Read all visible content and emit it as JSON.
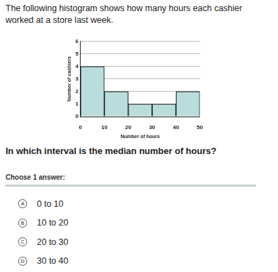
{
  "question": "The following histogram shows how many hours each cashier worked at a store last week.",
  "chart_data": {
    "type": "histogram",
    "x_label": "Number of hours",
    "y_label": "Number of cashiers",
    "bins": [
      0,
      10,
      20,
      30,
      40,
      50
    ],
    "values": [
      4,
      2,
      1,
      1,
      2
    ],
    "color": "#b9dcdc",
    "xlim": [
      0,
      50
    ],
    "xticks": [
      0,
      10,
      20,
      30,
      40,
      50
    ],
    "ylim": [
      0,
      6
    ],
    "yticks": [
      0,
      1,
      2,
      3,
      4,
      5,
      6
    ],
    "grid": true
  },
  "prompt": "In which interval is the median number of hours?",
  "choose_label": "Choose 1 answer:",
  "choices": [
    {
      "letter": "A",
      "text": "0 to 10"
    },
    {
      "letter": "B",
      "text": "10 to 20"
    },
    {
      "letter": "C",
      "text": "20 to 30"
    },
    {
      "letter": "D",
      "text": "30 to 40"
    }
  ]
}
